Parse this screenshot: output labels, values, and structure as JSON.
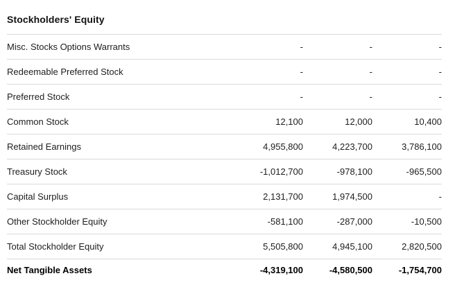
{
  "section": {
    "title": "Stockholders' Equity"
  },
  "table": {
    "rows": [
      {
        "label": "Misc. Stocks Options Warrants",
        "values": [
          "-",
          "-",
          "-"
        ],
        "bold": false
      },
      {
        "label": "Redeemable Preferred Stock",
        "values": [
          "-",
          "-",
          "-"
        ],
        "bold": false
      },
      {
        "label": "Preferred Stock",
        "values": [
          "-",
          "-",
          "-"
        ],
        "bold": false
      },
      {
        "label": "Common Stock",
        "values": [
          "12,100",
          "12,000",
          "10,400"
        ],
        "bold": false
      },
      {
        "label": "Retained Earnings",
        "values": [
          "4,955,800",
          "4,223,700",
          "3,786,100"
        ],
        "bold": false
      },
      {
        "label": "Treasury Stock",
        "values": [
          "-1,012,700",
          "-978,100",
          "-965,500"
        ],
        "bold": false
      },
      {
        "label": "Capital Surplus",
        "values": [
          "2,131,700",
          "1,974,500",
          "-"
        ],
        "bold": false
      },
      {
        "label": "Other Stockholder Equity",
        "values": [
          "-581,100",
          "-287,000",
          "-10,500"
        ],
        "bold": false
      },
      {
        "label": "Total Stockholder Equity",
        "values": [
          "5,505,800",
          "4,945,100",
          "2,820,500"
        ],
        "bold": false
      },
      {
        "label": "Net Tangible Assets",
        "values": [
          "-4,319,100",
          "-4,580,500",
          "-1,754,700"
        ],
        "bold": true
      }
    ]
  },
  "colors": {
    "text": "#1d1d1f",
    "bold_text": "#000000",
    "separator": "#dadada",
    "background": "#ffffff"
  }
}
